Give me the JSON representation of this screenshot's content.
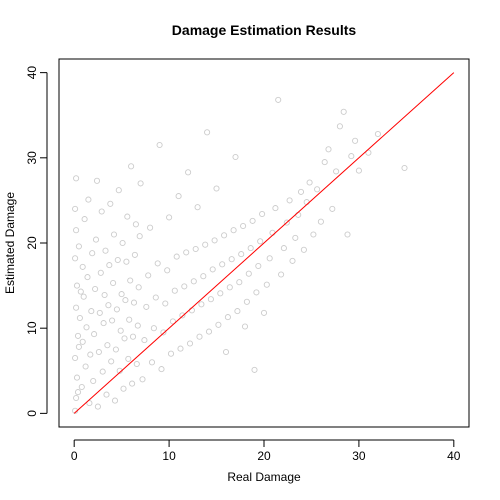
{
  "chart_data": {
    "type": "scatter",
    "title": "Damage Estimation Results",
    "xlabel": "Real Damage",
    "ylabel": "Estimated Damage",
    "xlim": [
      -1.6,
      41.6
    ],
    "ylim": [
      -1.6,
      41.6
    ],
    "x_ticks": [
      0,
      10,
      20,
      30,
      40
    ],
    "y_ticks": [
      0,
      10,
      20,
      30,
      40
    ],
    "grid": false,
    "legend": "none",
    "point_color": "#cccccc",
    "line_color": "#ff0000",
    "reference_line": {
      "x": [
        0,
        40
      ],
      "y": [
        0,
        40
      ]
    },
    "series": [
      {
        "points": [
          [
            0.1,
            0.3
          ],
          [
            0.2,
            1.8
          ],
          [
            0.3,
            4.2
          ],
          [
            0.1,
            6.5
          ],
          [
            0.4,
            9.1
          ],
          [
            0.2,
            12.4
          ],
          [
            0.3,
            15.0
          ],
          [
            0.1,
            18.2
          ],
          [
            0.2,
            21.5
          ],
          [
            0.1,
            24.0
          ],
          [
            0.2,
            27.6
          ],
          [
            0.4,
            2.5
          ],
          [
            0.5,
            7.8
          ],
          [
            0.6,
            11.2
          ],
          [
            0.7,
            14.3
          ],
          [
            0.5,
            19.6
          ],
          [
            0.8,
            3.1
          ],
          [
            0.9,
            8.4
          ],
          [
            1.0,
            13.7
          ],
          [
            0.9,
            17.2
          ],
          [
            1.1,
            22.8
          ],
          [
            1.2,
            5.5
          ],
          [
            1.3,
            10.1
          ],
          [
            1.4,
            16.0
          ],
          [
            1.5,
            25.1
          ],
          [
            1.6,
            1.2
          ],
          [
            1.7,
            6.9
          ],
          [
            1.8,
            12.0
          ],
          [
            1.9,
            18.8
          ],
          [
            2.0,
            3.8
          ],
          [
            2.1,
            9.3
          ],
          [
            2.2,
            14.6
          ],
          [
            2.3,
            20.4
          ],
          [
            2.4,
            27.3
          ],
          [
            2.5,
            0.8
          ],
          [
            2.6,
            7.2
          ],
          [
            2.7,
            11.8
          ],
          [
            2.8,
            16.5
          ],
          [
            2.9,
            23.7
          ],
          [
            3.0,
            4.9
          ],
          [
            3.1,
            10.6
          ],
          [
            3.2,
            13.9
          ],
          [
            3.3,
            19.1
          ],
          [
            3.4,
            2.2
          ],
          [
            3.5,
            8.0
          ],
          [
            3.6,
            12.7
          ],
          [
            3.7,
            17.4
          ],
          [
            3.8,
            24.6
          ],
          [
            3.9,
            6.1
          ],
          [
            4.0,
            10.9
          ],
          [
            4.1,
            15.3
          ],
          [
            4.2,
            21.0
          ],
          [
            4.3,
            1.5
          ],
          [
            4.4,
            7.5
          ],
          [
            4.5,
            12.2
          ],
          [
            4.6,
            18.0
          ],
          [
            4.7,
            26.2
          ],
          [
            4.8,
            5.0
          ],
          [
            4.9,
            9.7
          ],
          [
            5.0,
            14.0
          ],
          [
            5.1,
            20.0
          ],
          [
            5.2,
            2.9
          ],
          [
            5.3,
            8.8
          ],
          [
            5.4,
            13.3
          ],
          [
            5.5,
            17.8
          ],
          [
            5.6,
            23.1
          ],
          [
            5.7,
            6.4
          ],
          [
            5.8,
            11.0
          ],
          [
            5.9,
            15.6
          ],
          [
            6.0,
            29.0
          ],
          [
            6.1,
            3.5
          ],
          [
            6.2,
            9.0
          ],
          [
            6.3,
            13.0
          ],
          [
            6.4,
            18.6
          ],
          [
            6.5,
            22.2
          ],
          [
            6.6,
            5.8
          ],
          [
            6.7,
            10.3
          ],
          [
            6.8,
            14.8
          ],
          [
            6.9,
            20.8
          ],
          [
            7.0,
            27.0
          ],
          [
            7.2,
            4.0
          ],
          [
            7.4,
            8.6
          ],
          [
            7.6,
            12.5
          ],
          [
            7.8,
            16.2
          ],
          [
            8.0,
            21.8
          ],
          [
            8.2,
            6.0
          ],
          [
            8.4,
            10.0
          ],
          [
            8.6,
            13.6
          ],
          [
            8.8,
            17.6
          ],
          [
            9.0,
            31.5
          ],
          [
            9.2,
            5.2
          ],
          [
            9.4,
            9.5
          ],
          [
            9.6,
            12.9
          ],
          [
            9.8,
            16.8
          ],
          [
            10.0,
            23.0
          ],
          [
            10.2,
            7.0
          ],
          [
            10.4,
            10.8
          ],
          [
            10.6,
            14.4
          ],
          [
            10.8,
            18.4
          ],
          [
            11.0,
            25.5
          ],
          [
            11.2,
            7.6
          ],
          [
            11.4,
            11.5
          ],
          [
            11.6,
            14.9
          ],
          [
            11.8,
            18.9
          ],
          [
            12.0,
            28.3
          ],
          [
            12.2,
            8.2
          ],
          [
            12.4,
            12.1
          ],
          [
            12.6,
            15.5
          ],
          [
            12.8,
            19.3
          ],
          [
            13.0,
            24.2
          ],
          [
            13.2,
            9.0
          ],
          [
            13.4,
            12.8
          ],
          [
            13.6,
            16.1
          ],
          [
            13.8,
            19.8
          ],
          [
            14.0,
            33.0
          ],
          [
            14.2,
            9.6
          ],
          [
            14.4,
            13.4
          ],
          [
            14.6,
            16.9
          ],
          [
            14.8,
            20.3
          ],
          [
            15.0,
            26.4
          ],
          [
            15.2,
            10.4
          ],
          [
            15.4,
            14.1
          ],
          [
            15.6,
            17.5
          ],
          [
            15.8,
            20.9
          ],
          [
            16.0,
            7.2
          ],
          [
            16.2,
            11.3
          ],
          [
            16.4,
            14.8
          ],
          [
            16.6,
            18.1
          ],
          [
            16.8,
            21.5
          ],
          [
            17.0,
            30.1
          ],
          [
            17.2,
            12.0
          ],
          [
            17.4,
            15.4
          ],
          [
            17.6,
            18.7
          ],
          [
            17.8,
            22.0
          ],
          [
            18.0,
            10.2
          ],
          [
            18.2,
            13.1
          ],
          [
            18.4,
            16.4
          ],
          [
            18.6,
            19.4
          ],
          [
            18.8,
            22.6
          ],
          [
            19.0,
            5.1
          ],
          [
            19.2,
            14.2
          ],
          [
            19.4,
            17.3
          ],
          [
            19.6,
            20.2
          ],
          [
            19.8,
            23.4
          ],
          [
            20.0,
            11.8
          ],
          [
            20.3,
            15.1
          ],
          [
            20.6,
            18.2
          ],
          [
            20.9,
            21.2
          ],
          [
            21.2,
            24.1
          ],
          [
            21.5,
            36.8
          ],
          [
            21.8,
            16.3
          ],
          [
            22.1,
            19.4
          ],
          [
            22.4,
            22.4
          ],
          [
            22.7,
            25.0
          ],
          [
            23.0,
            17.9
          ],
          [
            23.3,
            20.6
          ],
          [
            23.6,
            23.3
          ],
          [
            23.9,
            26.0
          ],
          [
            24.2,
            19.2
          ],
          [
            24.5,
            24.8
          ],
          [
            24.8,
            27.1
          ],
          [
            25.2,
            21.0
          ],
          [
            25.6,
            26.3
          ],
          [
            26.0,
            22.5
          ],
          [
            26.4,
            29.5
          ],
          [
            26.8,
            31.0
          ],
          [
            27.2,
            24.0
          ],
          [
            27.6,
            28.4
          ],
          [
            28.0,
            33.7
          ],
          [
            28.4,
            35.4
          ],
          [
            28.8,
            21.0
          ],
          [
            29.2,
            30.2
          ],
          [
            29.6,
            32.0
          ],
          [
            30.0,
            28.5
          ],
          [
            31.0,
            30.6
          ],
          [
            32.0,
            32.8
          ],
          [
            34.8,
            28.8
          ]
        ]
      }
    ]
  }
}
